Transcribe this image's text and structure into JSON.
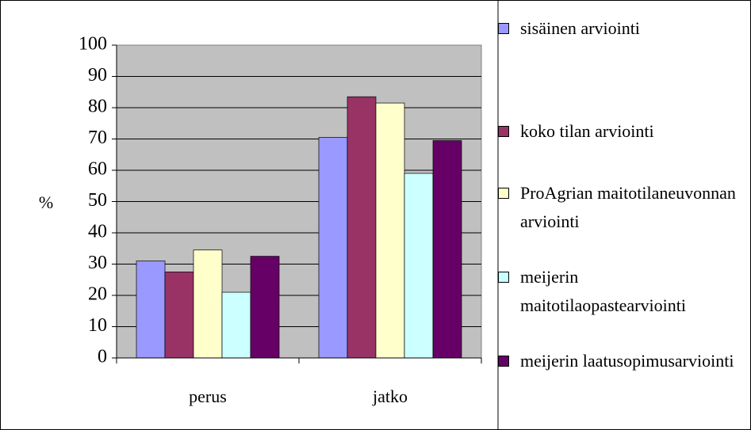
{
  "chart_data": {
    "type": "bar",
    "categories": [
      "perus",
      "jatko"
    ],
    "y_label": "%",
    "series": [
      {
        "name": "sisäinen arviointi",
        "color": "#9999ff",
        "values": [
          31,
          70.5
        ]
      },
      {
        "name": "koko tilan arviointi",
        "color": "#993366",
        "values": [
          27.5,
          83.5
        ]
      },
      {
        "name": "ProAgrian maitotilaneuvonnan arviointi",
        "color": "#ffffcc",
        "values": [
          34.5,
          81.5
        ]
      },
      {
        "name": "meijerin maitotilaopastearviointi",
        "color": "#ccffff",
        "values": [
          21,
          59
        ]
      },
      {
        "name": "meijerin laatusopimusarviointi",
        "color": "#660066",
        "values": [
          32.5,
          69.5
        ]
      }
    ],
    "ylim": [
      0,
      100
    ],
    "yticks": [
      0,
      10,
      20,
      30,
      40,
      50,
      60,
      70,
      80,
      90,
      100
    ],
    "grid": true,
    "legend": "right"
  }
}
